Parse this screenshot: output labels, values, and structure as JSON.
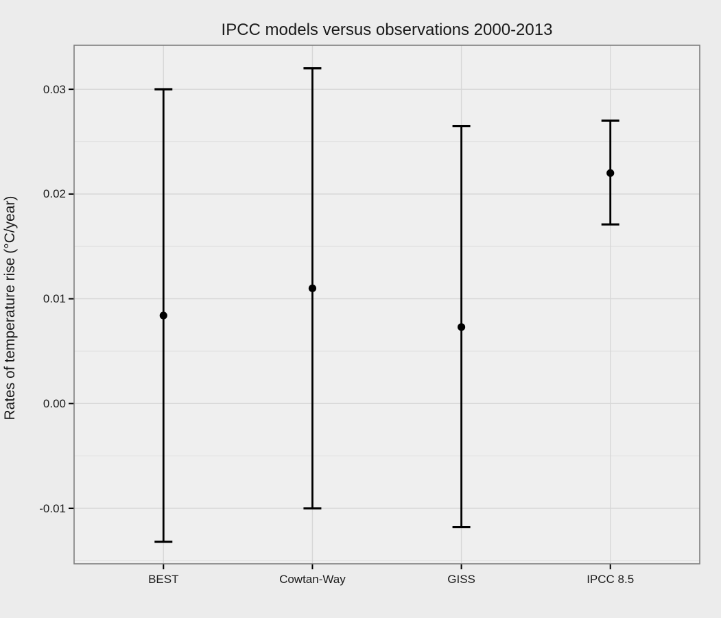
{
  "chart_data": {
    "type": "errorbar",
    "title": "IPCC models versus observations 2000-2013",
    "ylabel": "Rates of temperature rise (°C/year)",
    "xlabel": "",
    "categories": [
      "BEST",
      "Cowtan-Way",
      "GISS",
      "IPCC 8.5"
    ],
    "points": [
      {
        "category": "BEST",
        "center": 0.0084,
        "low": -0.0132,
        "high": 0.03
      },
      {
        "category": "Cowtan-Way",
        "center": 0.011,
        "low": -0.01,
        "high": 0.032
      },
      {
        "category": "GISS",
        "center": 0.0073,
        "low": -0.0118,
        "high": 0.0265
      },
      {
        "category": "IPCC 8.5",
        "center": 0.022,
        "low": 0.0171,
        "high": 0.027
      }
    ],
    "yticks": {
      "values": [
        -0.01,
        0.0,
        0.01,
        0.02,
        0.03
      ],
      "labels": [
        "-0.01",
        "0.00",
        "0.01",
        "0.02",
        "0.03"
      ]
    },
    "yminor": [
      -0.015,
      -0.005,
      0.005,
      0.015,
      0.025
    ],
    "ylim": [
      -0.0153,
      0.0342
    ],
    "grid": {
      "horizontal_major": true,
      "horizontal_minor": true,
      "vertical_major": true
    },
    "legend": "none",
    "colors": {
      "marker": "#000000",
      "text": "#1a1a1a",
      "page_background": "#ececec",
      "panel_background": "#efefef",
      "panel_border": "#7d7d7d",
      "grid_major": "#d7d7d7",
      "grid_minor": "#e2e2e2",
      "tick_mark": "#000000"
    }
  }
}
